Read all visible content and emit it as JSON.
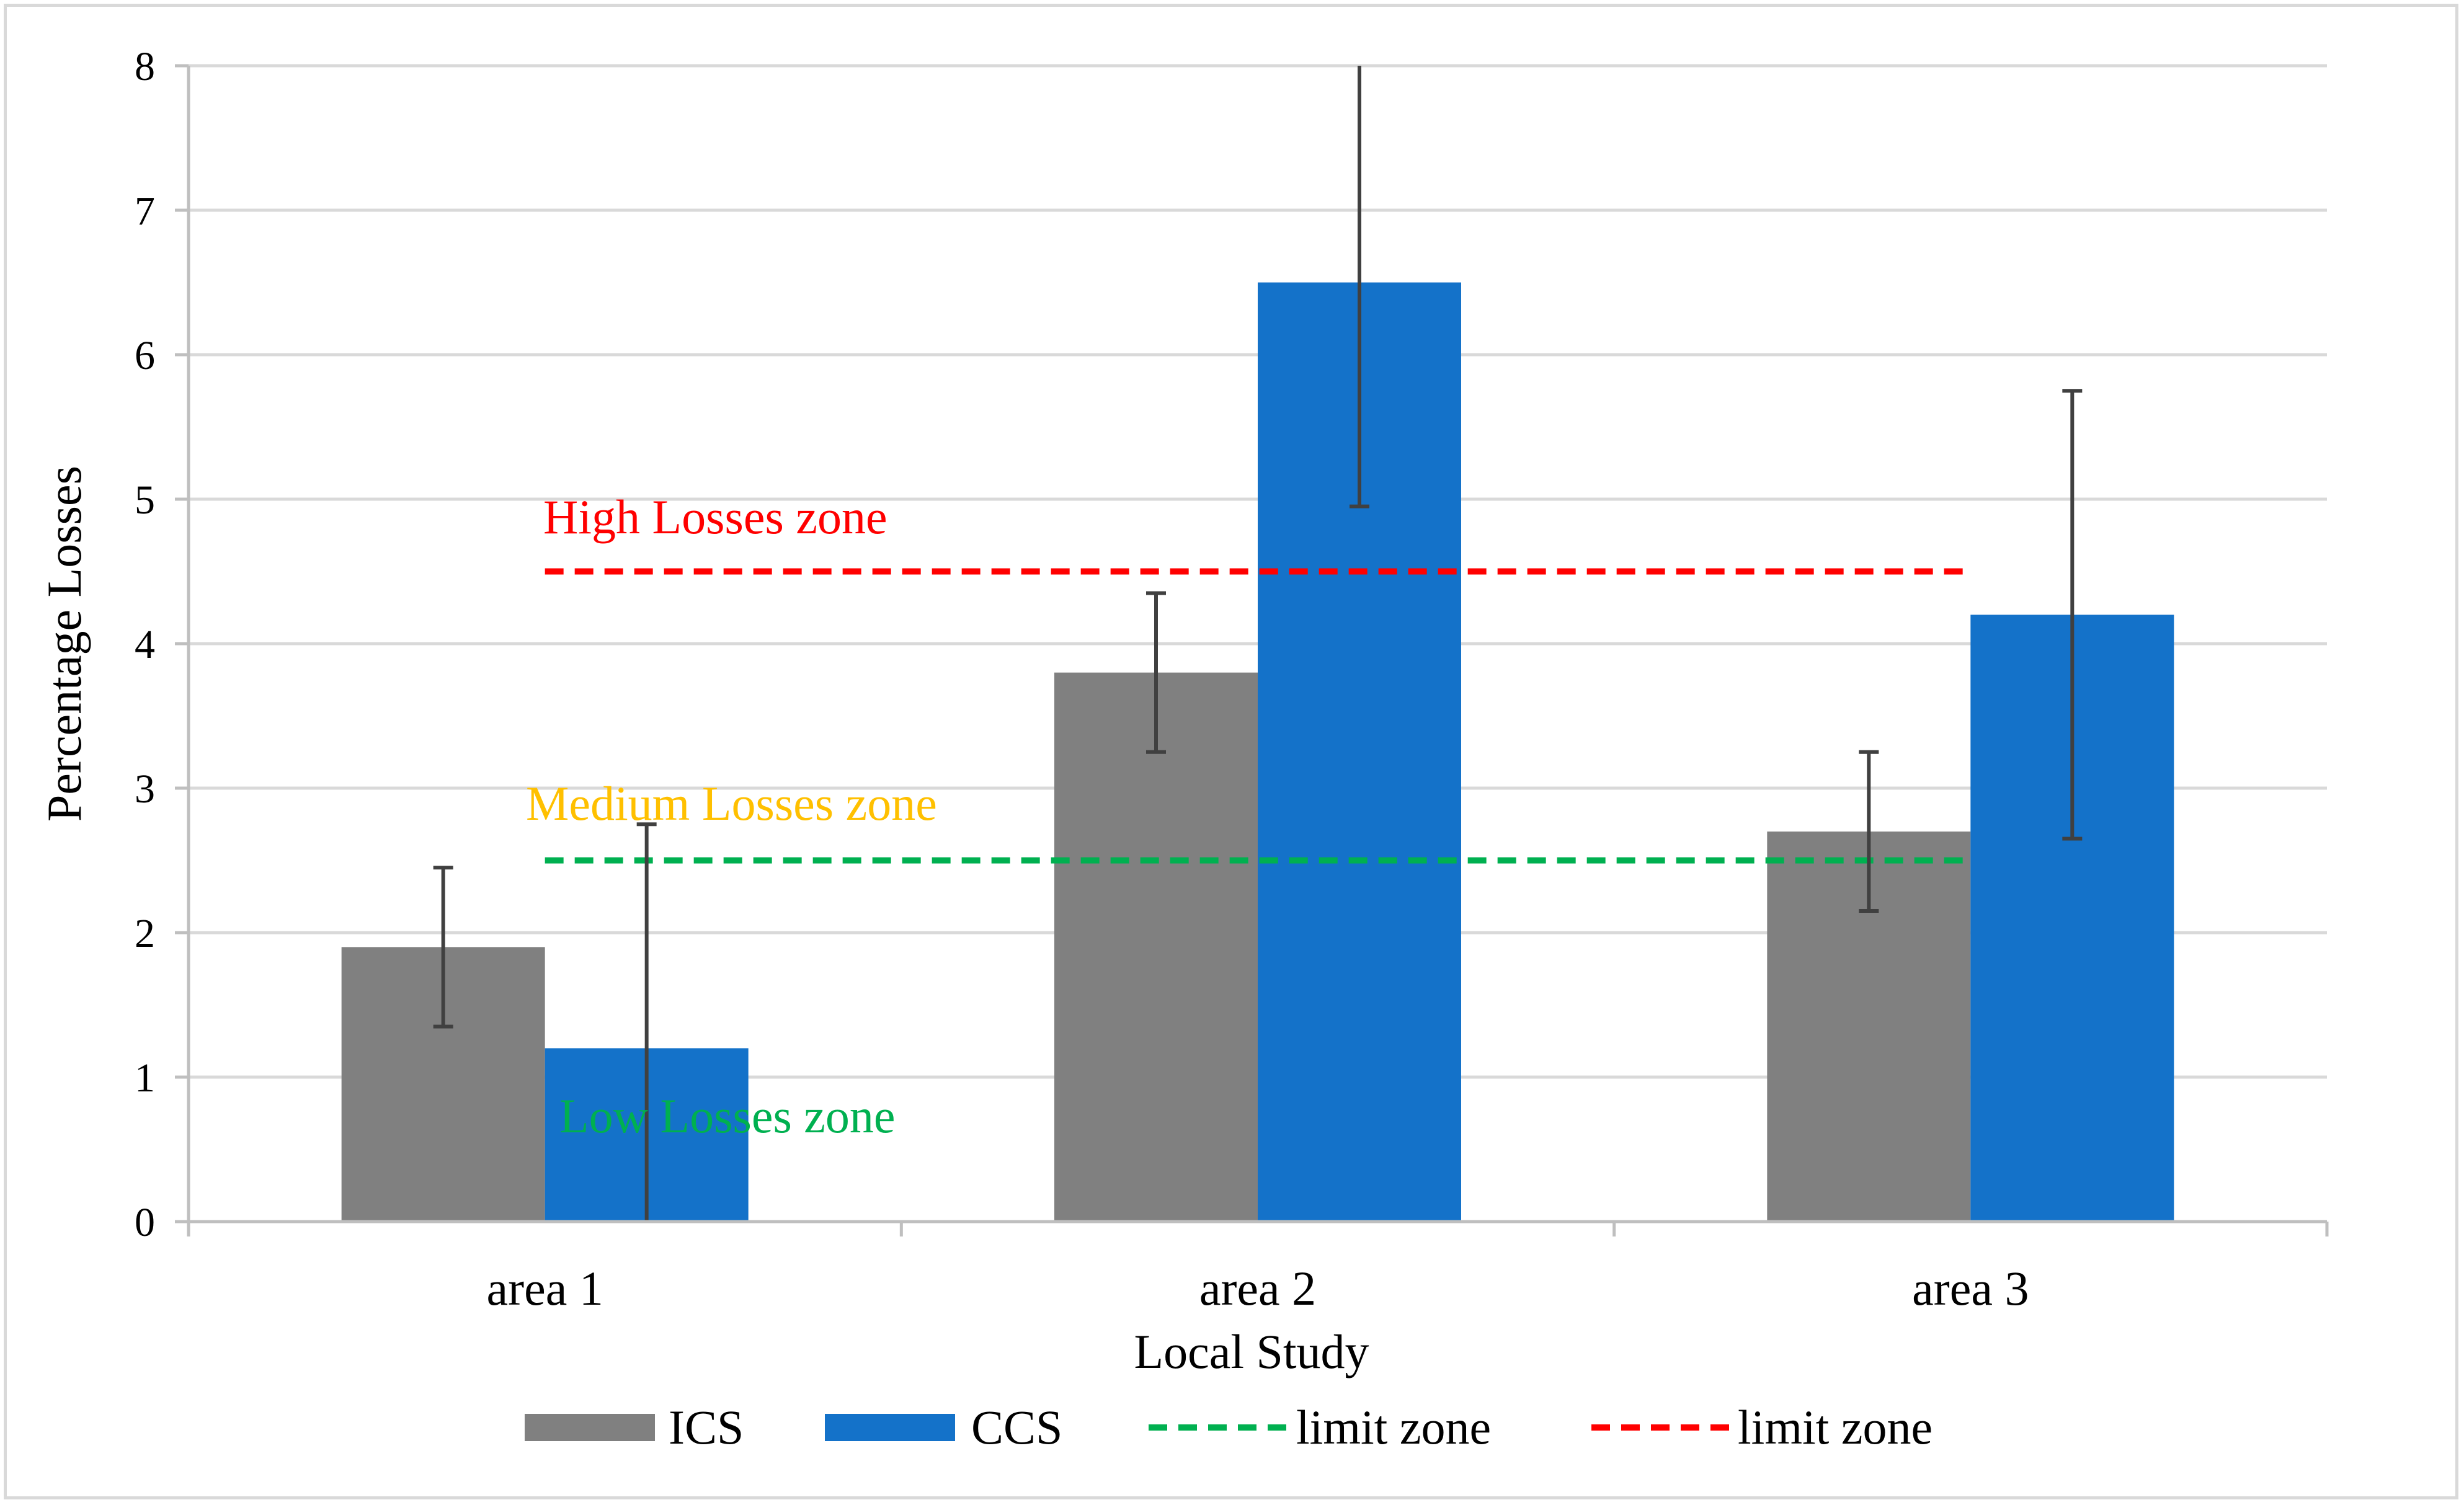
{
  "chart_data": {
    "type": "bar",
    "title": "",
    "xlabel": "Local Study",
    "ylabel": "Percentage Losses",
    "ylim": [
      0,
      8
    ],
    "yticks": [
      "0",
      "1",
      "2",
      "3",
      "4",
      "5",
      "6",
      "7",
      "8"
    ],
    "grid": true,
    "legend_position": "bottom",
    "categories": [
      "area 1",
      "area 2",
      "area 3"
    ],
    "series": [
      {
        "name": "ICS",
        "color": "#808080",
        "values": [
          1.9,
          3.8,
          2.7
        ],
        "error": [
          0.55,
          0.55,
          0.55
        ]
      },
      {
        "name": "CCS",
        "color": "#1472c9",
        "values": [
          1.2,
          6.5,
          4.2
        ],
        "error": [
          1.55,
          1.55,
          1.55
        ]
      }
    ],
    "limit_lines": [
      {
        "name": "limit zone",
        "value": 2.5,
        "color": "#00b050",
        "style": "dashed"
      },
      {
        "name": "limit zone",
        "value": 4.5,
        "color": "#ff0000",
        "style": "dashed"
      }
    ],
    "annotations": [
      {
        "text": "High Losses zone",
        "color": "#ff0000"
      },
      {
        "text": "Medium Losses zone",
        "color": "#ffc000"
      },
      {
        "text": "Low Losses zone",
        "color": "#00b050"
      }
    ]
  }
}
